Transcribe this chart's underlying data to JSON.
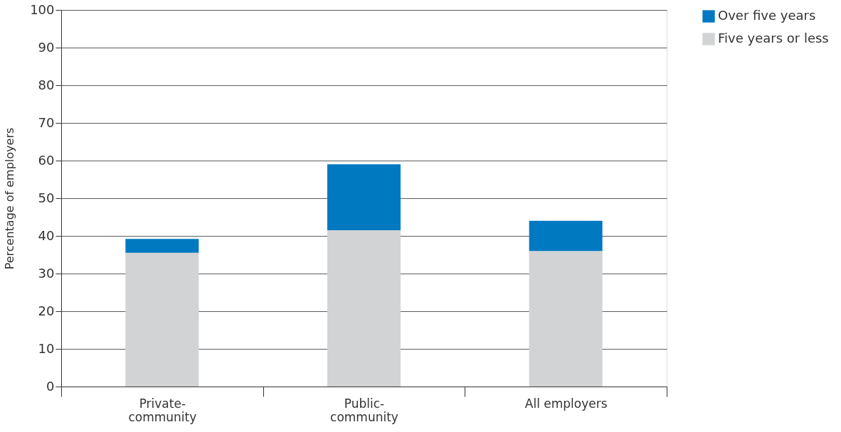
{
  "chart_data": {
    "type": "bar",
    "stacked": true,
    "ylabel": "Percentage of employers",
    "categories": [
      "Private-community",
      "Public-community",
      "All employers"
    ],
    "series": [
      {
        "name": "Five years or less",
        "color": "#d1d3d4",
        "values": [
          35.5,
          41.5,
          36
        ]
      },
      {
        "name": "Over five years",
        "color": "#0079c1",
        "values": [
          3.7,
          17.5,
          8
        ]
      }
    ],
    "ylim": [
      0,
      100
    ],
    "yticks": [
      0,
      10,
      20,
      30,
      40,
      50,
      60,
      70,
      80,
      90,
      100
    ],
    "grid": "y",
    "legend": "top right"
  }
}
